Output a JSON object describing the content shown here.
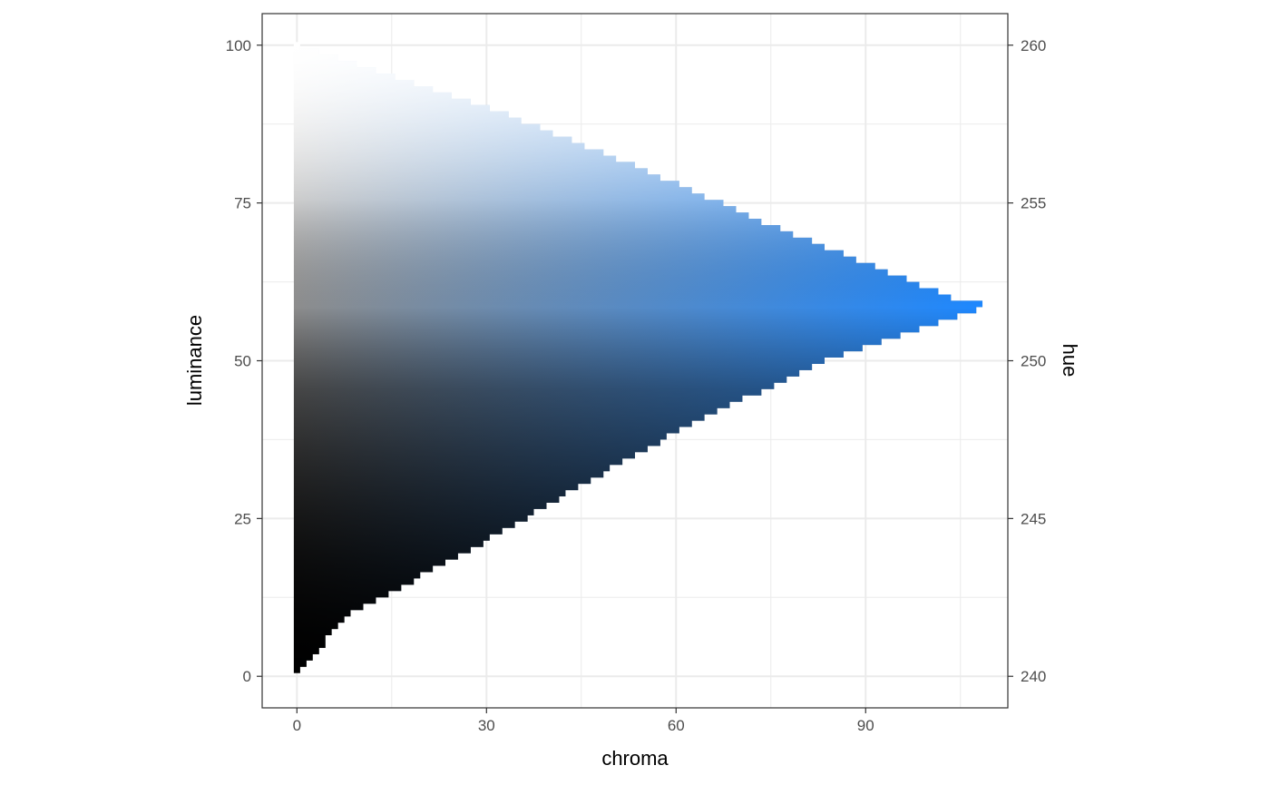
{
  "chart_data": {
    "type": "heatmap",
    "title": "",
    "xlabel": "chroma",
    "ylabel": "luminance",
    "y2label": "hue",
    "xlim": [
      -5.5,
      112.5
    ],
    "ylim": [
      -5,
      105
    ],
    "y2lim": [
      239,
      261
    ],
    "x_ticks": [
      0,
      30,
      60,
      90
    ],
    "y_ticks": [
      0,
      25,
      50,
      75,
      100
    ],
    "y2_ticks": [
      240,
      245,
      250,
      255,
      260
    ],
    "grid": true,
    "legend": "none",
    "hue_range": [
      240,
      260
    ],
    "gamut_boundary": {
      "description": "max chroma per luminance",
      "points": [
        {
          "luminance": 1,
          "chroma": 0
        },
        {
          "luminance": 10,
          "chroma": 8
        },
        {
          "luminance": 20,
          "chroma": 27
        },
        {
          "luminance": 30,
          "chroma": 44
        },
        {
          "luminance": 40,
          "chroma": 62
        },
        {
          "luminance": 50,
          "chroma": 83
        },
        {
          "luminance": 58,
          "chroma": 107
        },
        {
          "luminance": 59,
          "chroma": 108
        },
        {
          "luminance": 60,
          "chroma": 103
        },
        {
          "luminance": 70,
          "chroma": 78
        },
        {
          "luminance": 80,
          "chroma": 55
        },
        {
          "luminance": 90,
          "chroma": 30
        },
        {
          "luminance": 100,
          "chroma": 0
        }
      ]
    },
    "colors": {
      "black": "#000000",
      "gray_mid": "#777777",
      "white": "#ffffff",
      "peak_blue": "#1e88ff",
      "light_blue": "#c9d3ff"
    }
  }
}
